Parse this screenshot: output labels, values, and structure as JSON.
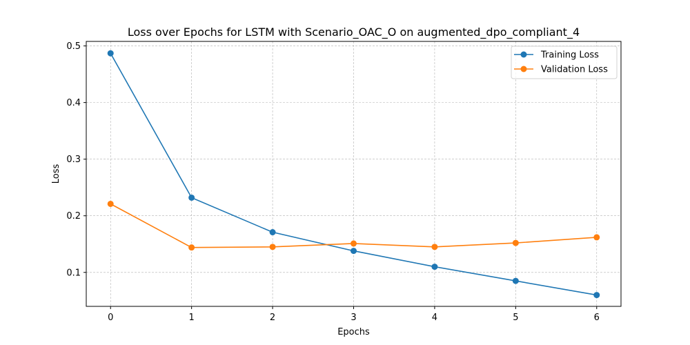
{
  "chart_data": {
    "type": "line",
    "title": "Loss over Epochs for LSTM with Scenario_OAC_O on augmented_dpo_compliant_4",
    "xlabel": "Epochs",
    "ylabel": "Loss",
    "x": [
      0,
      1,
      2,
      3,
      4,
      5,
      6
    ],
    "xlim": [
      -0.3,
      6.3
    ],
    "ylim": [
      0.04,
      0.508
    ],
    "xticks": [
      0,
      1,
      2,
      3,
      4,
      5,
      6
    ],
    "yticks": [
      0.1,
      0.2,
      0.3,
      0.4,
      0.5
    ],
    "ytick_labels": [
      "0.1",
      "0.2",
      "0.3",
      "0.4",
      "0.5"
    ],
    "grid": true,
    "legend_position": "top-right",
    "series": [
      {
        "name": "Training Loss",
        "color": "#1f77b4",
        "values": [
          0.487,
          0.232,
          0.171,
          0.138,
          0.11,
          0.085,
          0.06
        ]
      },
      {
        "name": "Validation Loss",
        "color": "#ff7f0e",
        "values": [
          0.221,
          0.144,
          0.145,
          0.151,
          0.145,
          0.152,
          0.162
        ]
      }
    ]
  }
}
